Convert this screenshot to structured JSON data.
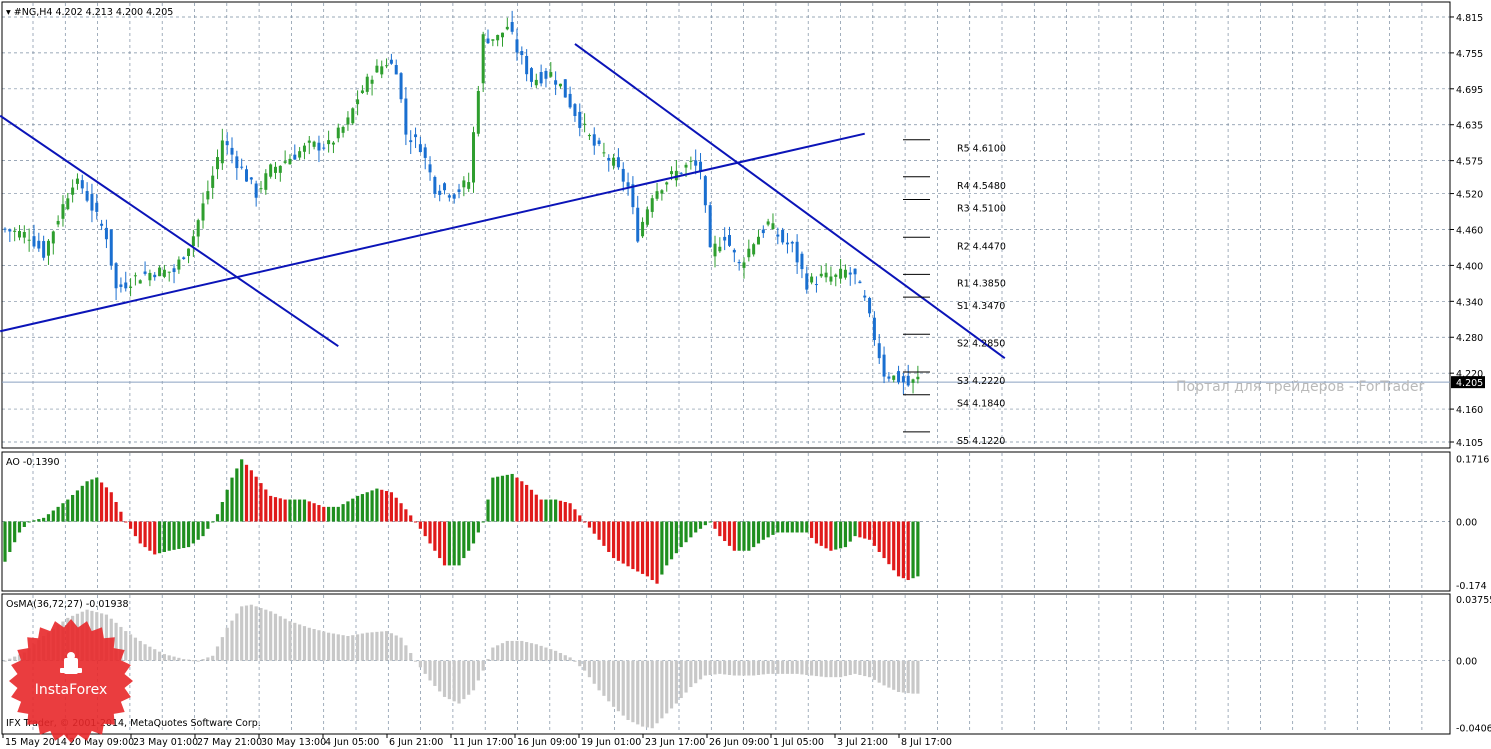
{
  "header": {
    "symbol": "#NG,H4",
    "ohlc": "4.202 4.213 4.200 4.205"
  },
  "indicators": {
    "ao_label": "AO -0.1390",
    "osma_label": "OsMA(36,72,27) -0.01938"
  },
  "watermark": "Портал для трейдеров - ForTrader",
  "copyright": "IFX Trader, © 2001-2014, MetaQuotes Software Corp.",
  "logo": {
    "text": "InstaForex",
    "color": "#e8282a"
  },
  "colors": {
    "bull": "#2e9e2e",
    "bear": "#1a6fd0",
    "trendline": "#0b14b8",
    "ao_up": "#1f8f1f",
    "ao_down": "#e01a1a",
    "osma": "#c8c8c8",
    "grid": "#7a8ca0",
    "current_price_line": "#8aa0c0"
  },
  "chart_data": {
    "type": "candlestick",
    "symbol": "#NG",
    "timeframe": "H4",
    "current_price": 4.205,
    "price_axis": {
      "ticks": [
        "4.815",
        "4.755",
        "4.695",
        "4.635",
        "4.575",
        "4.520",
        "4.460",
        "4.400",
        "4.340",
        "4.280",
        "4.220",
        "4.160",
        "4.105"
      ],
      "ylim": [
        4.095,
        4.84
      ],
      "current_label": "4.205"
    },
    "time_axis": {
      "labels": [
        "15 May 2014",
        "20 May 09:00",
        "23 May 01:00",
        "27 May 21:00",
        "30 May 13:00",
        "4 Jun 05:00",
        "6 Jun 21:00",
        "11 Jun 17:00",
        "16 Jun 09:00",
        "19 Jun 01:00",
        "23 Jun 17:00",
        "26 Jun 09:00",
        "1 Jul 05:00",
        "3 Jul 21:00",
        "8 Jul 17:00"
      ]
    },
    "close_path": [
      [
        0,
        4.46
      ],
      [
        5,
        4.45
      ],
      [
        8,
        4.42
      ],
      [
        11,
        4.48
      ],
      [
        14,
        4.54
      ],
      [
        16,
        4.53
      ],
      [
        19,
        4.48
      ],
      [
        21,
        4.45
      ],
      [
        23,
        4.36
      ],
      [
        27,
        4.38
      ],
      [
        31,
        4.39
      ],
      [
        35,
        4.39
      ],
      [
        39,
        4.45
      ],
      [
        43,
        4.55
      ],
      [
        45,
        4.61
      ],
      [
        49,
        4.56
      ],
      [
        52,
        4.52
      ],
      [
        55,
        4.56
      ],
      [
        59,
        4.58
      ],
      [
        63,
        4.6
      ],
      [
        67,
        4.6
      ],
      [
        71,
        4.64
      ],
      [
        73,
        4.68
      ],
      [
        76,
        4.72
      ],
      [
        79,
        4.74
      ],
      [
        81,
        4.73
      ],
      [
        83,
        4.62
      ],
      [
        86,
        4.6
      ],
      [
        89,
        4.53
      ],
      [
        93,
        4.52
      ],
      [
        96,
        4.54
      ],
      [
        99,
        4.78
      ],
      [
        102,
        4.78
      ],
      [
        104,
        4.8
      ],
      [
        106,
        4.76
      ],
      [
        109,
        4.71
      ],
      [
        113,
        4.72
      ],
      [
        115,
        4.7
      ],
      [
        119,
        4.64
      ],
      [
        122,
        4.6
      ],
      [
        126,
        4.57
      ],
      [
        129,
        4.53
      ],
      [
        131,
        4.45
      ],
      [
        134,
        4.52
      ],
      [
        138,
        4.55
      ],
      [
        142,
        4.57
      ],
      [
        144,
        4.56
      ],
      [
        146,
        4.42
      ],
      [
        149,
        4.45
      ],
      [
        152,
        4.4
      ],
      [
        155,
        4.44
      ],
      [
        158,
        4.47
      ],
      [
        161,
        4.44
      ],
      [
        163,
        4.43
      ],
      [
        166,
        4.37
      ],
      [
        169,
        4.38
      ],
      [
        172,
        4.38
      ],
      [
        174,
        4.39
      ],
      [
        176,
        4.38
      ],
      [
        178,
        4.34
      ],
      [
        180,
        4.28
      ],
      [
        182,
        4.22
      ],
      [
        185,
        4.21
      ],
      [
        187,
        4.2
      ],
      [
        189,
        4.21
      ]
    ],
    "pivot_levels": [
      {
        "name": "R5",
        "value": 4.61,
        "label": "R5 4.6100"
      },
      {
        "name": "R4",
        "value": 4.548,
        "label": "R4 4.5480"
      },
      {
        "name": "R3",
        "value": 4.51,
        "label": "R3 4.5100"
      },
      {
        "name": "R2",
        "value": 4.447,
        "label": "R2 4.4470"
      },
      {
        "name": "R1",
        "value": 4.385,
        "label": "R1 4.3850"
      },
      {
        "name": "S1",
        "value": 4.347,
        "label": "S1 4.3470"
      },
      {
        "name": "S2",
        "value": 4.285,
        "label": "S2 4.2850"
      },
      {
        "name": "S3",
        "value": 4.222,
        "label": "S3 4.2220"
      },
      {
        "name": "S4",
        "value": 4.184,
        "label": "S4 4.1840"
      },
      {
        "name": "S5",
        "value": 4.122,
        "label": "S5 4.1220"
      }
    ],
    "trendlines": [
      {
        "from": [
          -1,
          4.65
        ],
        "to": [
          69,
          4.265
        ]
      },
      {
        "from": [
          -1,
          4.29
        ],
        "to": [
          178,
          4.62
        ]
      },
      {
        "from": [
          118,
          4.77
        ],
        "to": [
          207,
          4.245
        ]
      }
    ],
    "ao": {
      "ticks": [
        "0.1716",
        "0.00",
        "-0.174"
      ],
      "ylim": [
        -0.19,
        0.19
      ],
      "path": [
        [
          0,
          -0.11
        ],
        [
          3,
          -0.03
        ],
        [
          5,
          0.0
        ],
        [
          8,
          0.01
        ],
        [
          13,
          0.06
        ],
        [
          17,
          0.11
        ],
        [
          19,
          0.12
        ],
        [
          22,
          0.08
        ],
        [
          25,
          0.0
        ],
        [
          28,
          -0.06
        ],
        [
          31,
          -0.09
        ],
        [
          34,
          -0.08
        ],
        [
          38,
          -0.07
        ],
        [
          41,
          -0.04
        ],
        [
          44,
          0.02
        ],
        [
          47,
          0.12
        ],
        [
          49,
          0.17
        ],
        [
          51,
          0.14
        ],
        [
          55,
          0.07
        ],
        [
          58,
          0.06
        ],
        [
          62,
          0.06
        ],
        [
          66,
          0.04
        ],
        [
          69,
          0.04
        ],
        [
          73,
          0.07
        ],
        [
          77,
          0.09
        ],
        [
          80,
          0.08
        ],
        [
          82,
          0.05
        ],
        [
          85,
          0.0
        ],
        [
          88,
          -0.06
        ],
        [
          91,
          -0.12
        ],
        [
          94,
          -0.12
        ],
        [
          97,
          -0.06
        ],
        [
          99,
          0.0
        ],
        [
          101,
          0.12
        ],
        [
          105,
          0.13
        ],
        [
          108,
          0.1
        ],
        [
          111,
          0.06
        ],
        [
          114,
          0.06
        ],
        [
          117,
          0.05
        ],
        [
          120,
          0.0
        ],
        [
          123,
          -0.05
        ],
        [
          126,
          -0.1
        ],
        [
          130,
          -0.13
        ],
        [
          133,
          -0.15
        ],
        [
          135,
          -0.17
        ],
        [
          137,
          -0.12
        ],
        [
          140,
          -0.07
        ],
        [
          143,
          -0.03
        ],
        [
          146,
          0.0
        ],
        [
          148,
          -0.04
        ],
        [
          151,
          -0.08
        ],
        [
          154,
          -0.08
        ],
        [
          157,
          -0.05
        ],
        [
          160,
          -0.03
        ],
        [
          163,
          -0.03
        ],
        [
          166,
          -0.03
        ],
        [
          168,
          -0.06
        ],
        [
          171,
          -0.08
        ],
        [
          174,
          -0.07
        ],
        [
          176,
          -0.04
        ],
        [
          179,
          -0.05
        ],
        [
          182,
          -0.1
        ],
        [
          185,
          -0.15
        ],
        [
          187,
          -0.16
        ],
        [
          189,
          -0.15
        ]
      ]
    },
    "osma": {
      "ticks": [
        "0.03755",
        "0.00",
        "-0.04063"
      ],
      "ylim": [
        -0.0445,
        0.0405
      ],
      "path": [
        [
          0,
          0.0
        ],
        [
          4,
          0.005
        ],
        [
          8,
          0.015
        ],
        [
          13,
          0.026
        ],
        [
          17,
          0.031
        ],
        [
          21,
          0.028
        ],
        [
          25,
          0.018
        ],
        [
          29,
          0.01
        ],
        [
          33,
          0.004
        ],
        [
          37,
          0.001
        ],
        [
          40,
          0.0
        ],
        [
          43,
          0.003
        ],
        [
          46,
          0.02
        ],
        [
          49,
          0.033
        ],
        [
          51,
          0.034
        ],
        [
          55,
          0.03
        ],
        [
          59,
          0.024
        ],
        [
          63,
          0.02
        ],
        [
          67,
          0.017
        ],
        [
          71,
          0.015
        ],
        [
          75,
          0.017
        ],
        [
          79,
          0.018
        ],
        [
          82,
          0.014
        ],
        [
          85,
          0.0
        ],
        [
          88,
          -0.012
        ],
        [
          91,
          -0.022
        ],
        [
          94,
          -0.026
        ],
        [
          97,
          -0.018
        ],
        [
          99,
          -0.006
        ],
        [
          101,
          0.008
        ],
        [
          104,
          0.012
        ],
        [
          107,
          0.012
        ],
        [
          110,
          0.01
        ],
        [
          114,
          0.006
        ],
        [
          117,
          0.002
        ],
        [
          120,
          -0.006
        ],
        [
          123,
          -0.018
        ],
        [
          126,
          -0.028
        ],
        [
          129,
          -0.036
        ],
        [
          132,
          -0.04
        ],
        [
          134,
          -0.041
        ],
        [
          136,
          -0.035
        ],
        [
          139,
          -0.026
        ],
        [
          142,
          -0.016
        ],
        [
          145,
          -0.009
        ],
        [
          148,
          -0.008
        ],
        [
          151,
          -0.009
        ],
        [
          155,
          -0.009
        ],
        [
          158,
          -0.008
        ],
        [
          161,
          -0.008
        ],
        [
          164,
          -0.008
        ],
        [
          167,
          -0.009
        ],
        [
          170,
          -0.01
        ],
        [
          173,
          -0.01
        ],
        [
          176,
          -0.008
        ],
        [
          179,
          -0.01
        ],
        [
          182,
          -0.015
        ],
        [
          185,
          -0.019
        ],
        [
          188,
          -0.02
        ],
        [
          189,
          -0.02
        ]
      ]
    }
  }
}
